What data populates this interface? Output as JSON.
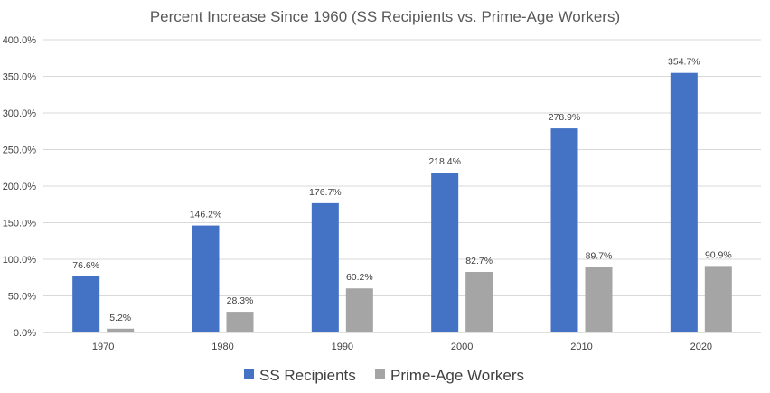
{
  "chart_data": {
    "type": "bar",
    "title": "Percent Increase Since 1960 (SS Recipients vs. Prime-Age Workers)",
    "categories": [
      "1970",
      "1980",
      "1990",
      "2000",
      "2010",
      "2020"
    ],
    "series": [
      {
        "name": "SS Recipients",
        "color": "#4472c4",
        "values": [
          76.6,
          146.2,
          176.7,
          218.4,
          278.9,
          354.7
        ],
        "labels": [
          "76.6%",
          "146.2%",
          "176.7%",
          "218.4%",
          "278.9%",
          "354.7%"
        ]
      },
      {
        "name": "Prime-Age Workers",
        "color": "#a5a5a5",
        "values": [
          5.2,
          28.3,
          60.2,
          82.7,
          89.7,
          90.9
        ],
        "labels": [
          "5.2%",
          "28.3%",
          "60.2%",
          "82.7%",
          "89.7%",
          "90.9%"
        ]
      }
    ],
    "yticks": [
      "0.0%",
      "50.0%",
      "100.0%",
      "150.0%",
      "200.0%",
      "250.0%",
      "300.0%",
      "350.0%",
      "400.0%"
    ],
    "ylim": [
      0,
      400
    ],
    "grid": true,
    "legend": "bottom"
  }
}
